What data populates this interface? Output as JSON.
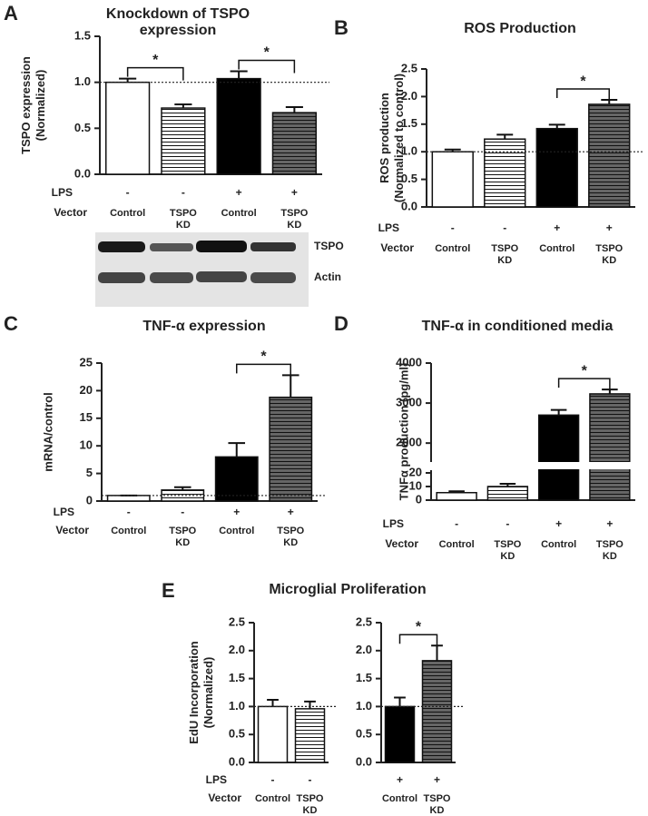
{
  "chart_data": [
    {
      "type": "bar",
      "panel": "A",
      "title": [
        "Knockdown of TSPO",
        "expression"
      ],
      "ylabel": [
        "TSPO expression",
        "(Normalized)"
      ],
      "categories": [
        "Control",
        [
          "TSPO",
          "KD"
        ],
        "Control",
        [
          "TSPO",
          "KD"
        ]
      ],
      "lps": [
        "-",
        "-",
        "+",
        "+"
      ],
      "row_labels": [
        "LPS",
        "Vector"
      ],
      "values": [
        1.0,
        0.72,
        1.04,
        0.67
      ],
      "errors": [
        0.04,
        0.04,
        0.08,
        0.06
      ],
      "colors": [
        "#ffffff",
        "#ffffff",
        "#000000",
        "#666666"
      ],
      "hatched": [
        false,
        true,
        false,
        true
      ],
      "ylim": [
        0,
        1.5
      ],
      "yticks": [
        {
          "value": 0,
          "label": "0.0"
        },
        0.5,
        {
          "value": 1,
          "label": "1.0"
        },
        1.5
      ],
      "reference_line": 1,
      "significance": [
        {
          "bars": [
            0,
            1
          ],
          "label": "*"
        },
        {
          "bars": [
            2,
            3
          ],
          "label": "*"
        }
      ],
      "blot_labels": [
        "TSPO",
        "Actin"
      ]
    },
    {
      "type": "bar",
      "panel": "B",
      "title": "ROS Production",
      "ylabel": [
        "ROS production",
        "(Normalized to control)"
      ],
      "categories": [
        "Control",
        [
          "TSPO",
          "KD"
        ],
        "Control",
        [
          "TSPO",
          "KD"
        ]
      ],
      "lps": [
        "-",
        "-",
        "+",
        "+"
      ],
      "row_labels": [
        "LPS",
        "Vector"
      ],
      "values": [
        1.0,
        1.23,
        1.42,
        1.86
      ],
      "errors": [
        0.04,
        0.08,
        0.07,
        0.08
      ],
      "colors": [
        "#ffffff",
        "#ffffff",
        "#000000",
        "#666666"
      ],
      "hatched": [
        false,
        true,
        false,
        true
      ],
      "ylim": [
        0,
        2.5
      ],
      "yticks": [
        {
          "value": 0,
          "label": "0.0"
        },
        0.5,
        {
          "value": 1,
          "label": "1.0"
        },
        1.5,
        {
          "value": 2,
          "label": "2.0"
        },
        2.5
      ],
      "reference_line": 1,
      "significance": [
        {
          "bars": [
            2,
            3
          ],
          "label": "*"
        }
      ]
    },
    {
      "type": "bar",
      "panel": "C",
      "title": "TNF-α expression",
      "ylabel": "mRNA/control",
      "categories": [
        "Control",
        [
          "TSPO",
          "KD"
        ],
        "Control",
        [
          "TSPO",
          "KD"
        ]
      ],
      "lps": [
        "-",
        "-",
        "+",
        "+"
      ],
      "row_labels": [
        "LPS",
        "Vector"
      ],
      "values": [
        1.0,
        2.0,
        8.0,
        18.8
      ],
      "errors": [
        0,
        0.5,
        2.5,
        4.0
      ],
      "colors": [
        "#ffffff",
        "#ffffff",
        "#000000",
        "#666666"
      ],
      "hatched": [
        false,
        true,
        false,
        true
      ],
      "ylim": [
        0,
        25
      ],
      "yticks": [
        0,
        5,
        10,
        15,
        20,
        25
      ],
      "reference_line": 1,
      "significance": [
        {
          "bars": [
            2,
            3
          ],
          "label": "*"
        }
      ]
    },
    {
      "type": "bar",
      "panel": "D",
      "title": "TNF-α in conditioned media",
      "ylabel": "TNFα production (pg/ml)",
      "categories": [
        "Control",
        [
          "TSPO",
          "KD"
        ],
        "Control",
        [
          "TSPO",
          "KD"
        ]
      ],
      "lps": [
        "-",
        "-",
        "+",
        "+"
      ],
      "row_labels": [
        "LPS",
        "Vector"
      ],
      "values": [
        5.5,
        10,
        2700,
        3230
      ],
      "errors": [
        1,
        2,
        130,
        110
      ],
      "colors": [
        "#ffffff",
        "#ffffff",
        "#000000",
        "#666666"
      ],
      "hatched": [
        false,
        true,
        false,
        true
      ],
      "segments": [
        {
          "ylim": [
            0,
            22
          ],
          "yticks": [
            0,
            10,
            20
          ]
        },
        {
          "ylim": [
            1550,
            4000
          ],
          "yticks": [
            2000,
            3000,
            4000
          ]
        }
      ],
      "significance": [
        {
          "bars": [
            2,
            3
          ],
          "label": "*"
        }
      ]
    },
    {
      "type": "bar",
      "panel": "E",
      "title": "Microglial Proliferation",
      "ylabel": [
        "EdU Incorporation",
        "(Normalized)"
      ],
      "categories": [
        "Control",
        [
          "TSPO",
          "KD"
        ]
      ],
      "lps": [
        "-",
        "-"
      ],
      "row_labels": [
        "LPS",
        "Vector"
      ],
      "values": [
        1.0,
        0.96
      ],
      "errors": [
        0.12,
        0.13
      ],
      "colors": [
        "#ffffff",
        "#ffffff"
      ],
      "hatched": [
        false,
        true
      ],
      "ylim": [
        0,
        2.5
      ],
      "yticks": [
        {
          "value": 0,
          "label": "0.0"
        },
        0.5,
        {
          "value": 1,
          "label": "1.0"
        },
        1.5,
        {
          "value": 2,
          "label": "2.0"
        },
        2.5
      ],
      "reference_line": 1
    },
    {
      "type": "bar",
      "categories": [
        "Control",
        [
          "TSPO",
          "KD"
        ]
      ],
      "lps": [
        "+",
        "+"
      ],
      "values": [
        1.0,
        1.82
      ],
      "errors": [
        0.16,
        0.27
      ],
      "colors": [
        "#000000",
        "#666666"
      ],
      "hatched": [
        false,
        true
      ],
      "ylim": [
        0,
        2.5
      ],
      "yticks": [
        {
          "value": 0,
          "label": "0.0"
        },
        0.5,
        {
          "value": 1,
          "label": "1.0"
        },
        1.5,
        {
          "value": 2,
          "label": "2.0"
        },
        2.5
      ],
      "reference_line": 1,
      "significance": [
        {
          "bars": [
            0,
            1
          ],
          "label": "*"
        }
      ]
    }
  ]
}
